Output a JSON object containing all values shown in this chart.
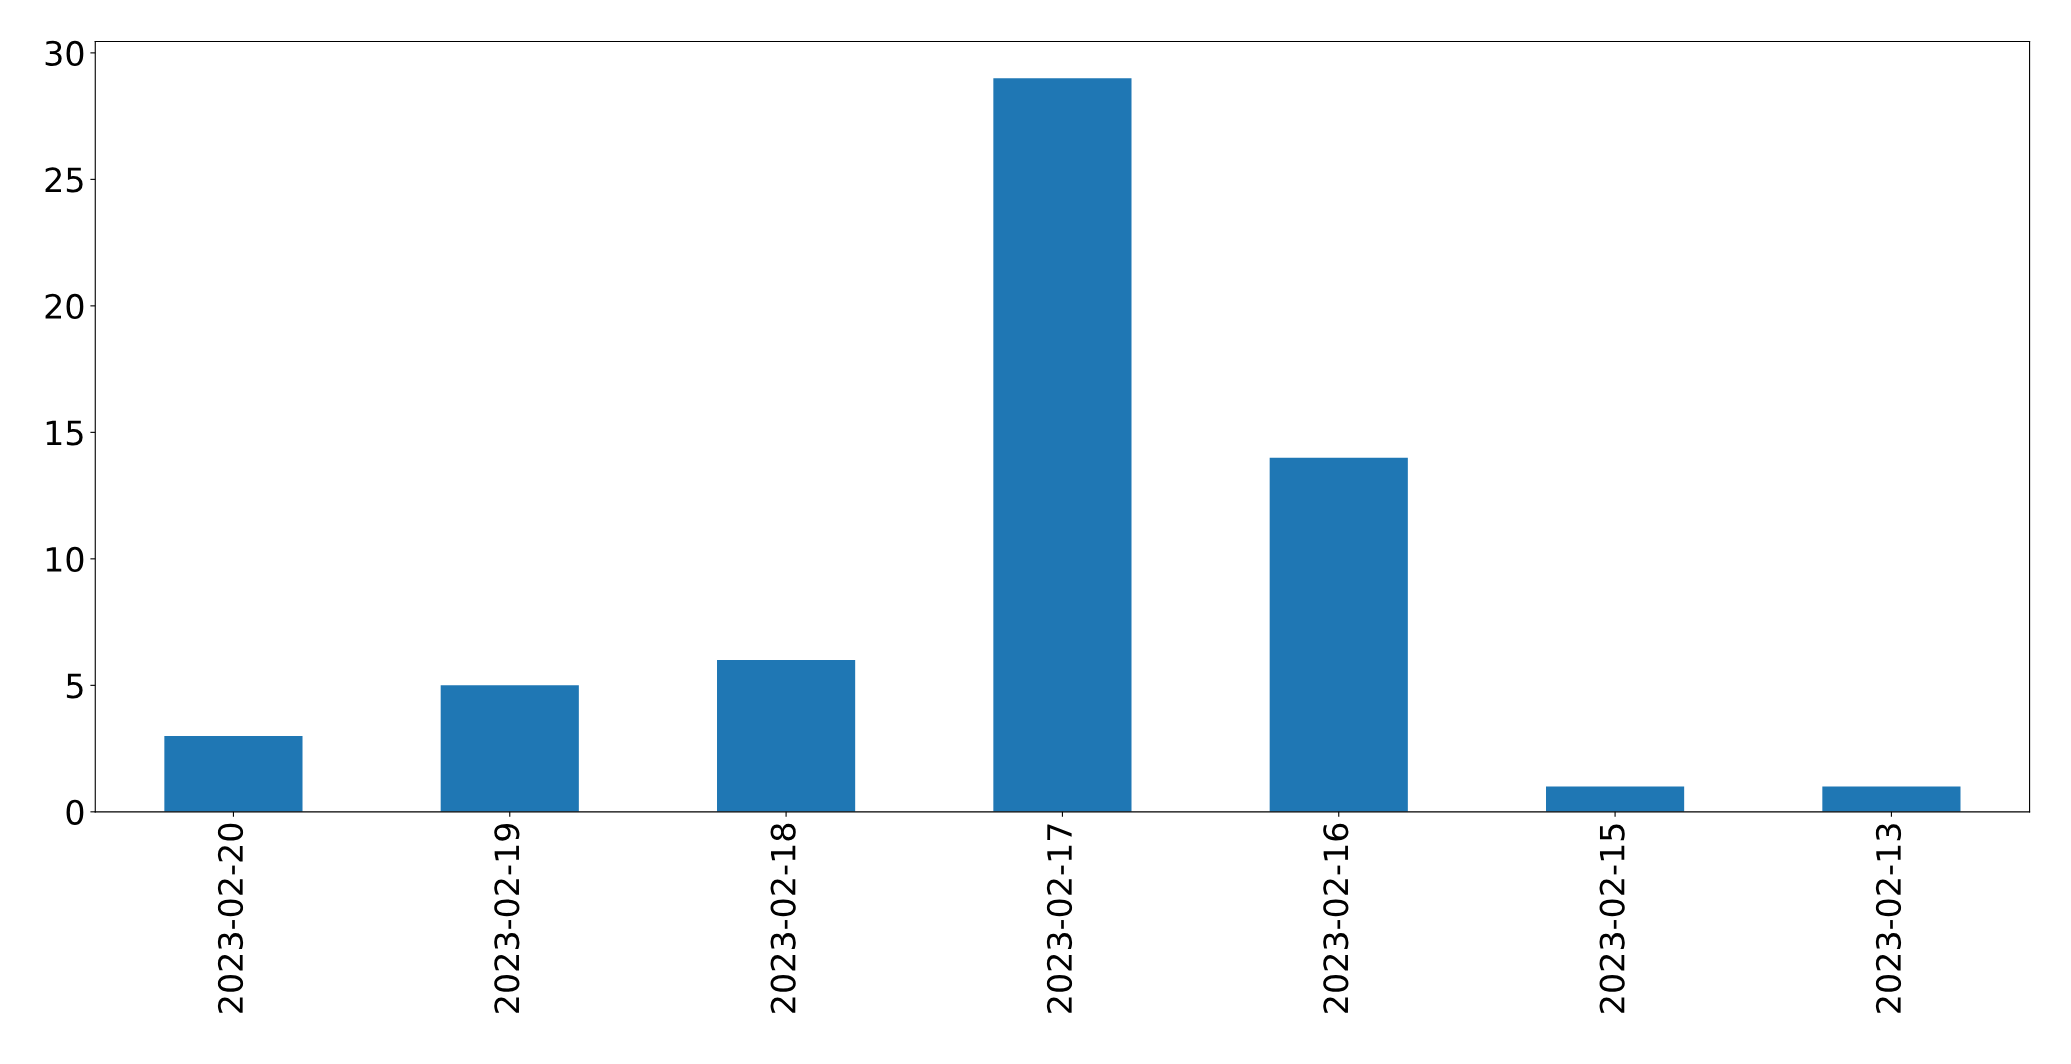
{
  "chart_data": {
    "type": "bar",
    "categories": [
      "2023-02-20",
      "2023-02-19",
      "2023-02-18",
      "2023-02-17",
      "2023-02-16",
      "2023-02-15",
      "2023-02-13"
    ],
    "values": [
      3,
      5,
      6,
      29,
      14,
      1,
      1
    ],
    "color": "#1f77b4",
    "ylim": [
      0,
      30.45
    ],
    "yticks": [
      0,
      5,
      10,
      15,
      20,
      25,
      30
    ],
    "grid": false,
    "legend": false
  }
}
